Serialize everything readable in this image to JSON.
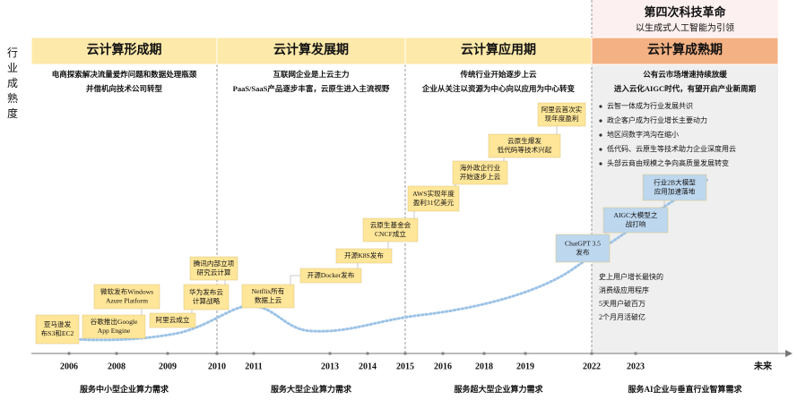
{
  "y_axis_label": "行业成熟度",
  "banner": {
    "title": "第四次科技革命",
    "subtitle": "以生成式人工智能为引领"
  },
  "phases": [
    {
      "name": "云计算形成期",
      "lines": [
        "电商探索解决流量爰炸问题和数据处理瓶颈",
        "并借机向技术公司转型"
      ]
    },
    {
      "name": "云计算发展期",
      "lines": [
        "互联网企业是上云主力",
        "PaaS/SaaS产品逐步丰富，云原生进入主流视野"
      ]
    },
    {
      "name": "云计算应用期",
      "lines": [
        "传统行业开始逐步上云",
        "企业从关注以资源为中心向以应用为中心转变"
      ]
    },
    {
      "name": "云计算成熟期",
      "lines": [
        "公有云市场增速持续放缓",
        "进入云化AIGC时代，有望开启产业新周期"
      ],
      "bullets": [
        "云智一体成为行业发展共识",
        "政企客户成为行业增长主要动力",
        "地区间数字鸿沟在缩小",
        "低代码、云原生等技术助力企业深度用云",
        "头部云商由规模之争向高质量发展转变"
      ]
    }
  ],
  "events": [
    {
      "lines": [
        "亚马逊发",
        "布S3和EC2"
      ],
      "color": "#ffe699"
    },
    {
      "lines": [
        "谷歌推出Google",
        "App Engine"
      ],
      "color": "#ffe699"
    },
    {
      "lines": [
        "微软发布Windows",
        "Azure Platform"
      ],
      "color": "#ffe699"
    },
    {
      "lines": [
        "阿里云成立"
      ],
      "color": "#ffe699"
    },
    {
      "lines": [
        "华为发布云",
        "计算战略"
      ],
      "color": "#ffe699"
    },
    {
      "lines": [
        "腾讯内部立项",
        "研究云计算"
      ],
      "color": "#ffe699"
    },
    {
      "lines": [
        "Netflix所有",
        "数据上云"
      ],
      "color": "#ffe699"
    },
    {
      "lines": [
        "开源Docker发布"
      ],
      "color": "#ffe699"
    },
    {
      "lines": [
        "开源K8S发布"
      ],
      "color": "#ffe699"
    },
    {
      "lines": [
        "云原生基金会",
        "CNCF成立"
      ],
      "color": "#ffe699"
    },
    {
      "lines": [
        "AWS实现年度",
        "盈利31亿美元"
      ],
      "color": "#ffe699"
    },
    {
      "lines": [
        "海外政企行业",
        "开始逐步上云"
      ],
      "color": "#ffe699"
    },
    {
      "lines": [
        "云原生爆发",
        "低代码等技术兴起"
      ],
      "color": "#ffe699"
    },
    {
      "lines": [
        "阿里云首次实",
        "现年度盈利"
      ],
      "color": "#ffe699"
    },
    {
      "lines": [
        "ChatGPT 3.5",
        "发布"
      ],
      "color": "#bdd7ee"
    },
    {
      "lines": [
        "AIGC大模型之",
        "战打响"
      ],
      "color": "#bdd7ee"
    },
    {
      "lines": [
        "行业2B大模型",
        "应用加速落地"
      ],
      "color": "#bdd7ee"
    }
  ],
  "note": [
    "史上用户增长最快的",
    "消费级应用程序",
    "5天用户破百万",
    "2个月月活破亿"
  ],
  "years": [
    "2006",
    "2008",
    "2009",
    "2010",
    "2011",
    "2013",
    "2014",
    "2015",
    "2016",
    "2018",
    "2019",
    "2022",
    "2023",
    "未来"
  ],
  "demands": [
    "服务中小型企业算力需求",
    "服务大型企业算力需求",
    "服务超大型企业算力需求",
    "服务AI企业与垂直行业智算需求"
  ]
}
